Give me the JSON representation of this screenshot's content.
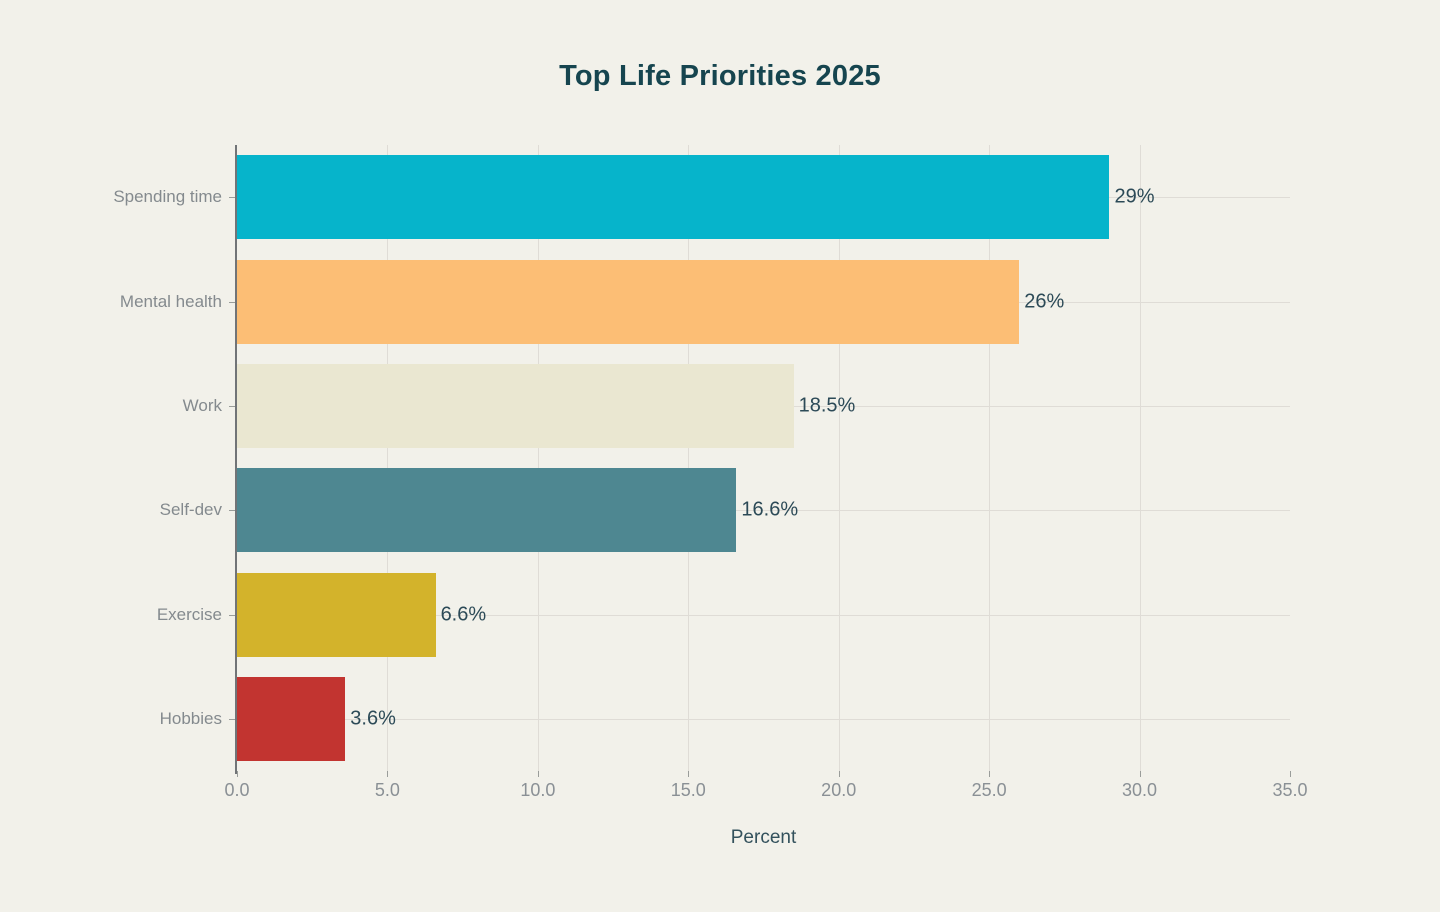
{
  "chart_data": {
    "type": "bar",
    "orientation": "horizontal",
    "title": "Top Life Priorities 2025",
    "xlabel": "Percent",
    "ylabel": "",
    "categories": [
      "Spending time",
      "Mental health",
      "Work",
      "Self-dev",
      "Exercise",
      "Hobbies"
    ],
    "values": [
      29,
      26,
      18.5,
      16.6,
      6.6,
      3.6
    ],
    "value_labels": [
      "29%",
      "26%",
      "18.5%",
      "16.6%",
      "6.6%",
      "3.6%"
    ],
    "bar_colors": [
      "#06b4cb",
      "#fcbe75",
      "#eae7d1",
      "#4e8791",
      "#d3b32b",
      "#c23430"
    ],
    "xlim": [
      0,
      35
    ],
    "xticks": [
      0,
      5,
      10,
      15,
      20,
      25,
      30,
      35
    ],
    "xtick_labels": [
      "0.0",
      "5.0",
      "10.0",
      "15.0",
      "20.0",
      "25.0",
      "30.0",
      "35.0"
    ],
    "grid": true,
    "legend": "none",
    "colors": {
      "background": "#f2f1ea",
      "title": "#16454f",
      "value_label": "#2c4a57",
      "category_label": "#848a8e",
      "tick_label": "#8a9095",
      "xlabel": "#33515c",
      "axis_line": "#717477",
      "gridline": "#dfdcd6",
      "tick_mark": "#9a9d9a"
    }
  }
}
